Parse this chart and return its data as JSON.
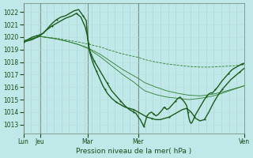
{
  "xlabel": "Pression niveau de la mer( hPa )",
  "bg_color": "#c0e8e8",
  "grid_color_v": "#a8d4d4",
  "grid_color_h": "#b8dcdc",
  "line_dark": "#1a5c1a",
  "line_thin": "#2e7d2e",
  "line_vlight": "#5aaa5a",
  "ylim": [
    1012.3,
    1022.7
  ],
  "yticks": [
    1013,
    1014,
    1015,
    1016,
    1017,
    1018,
    1019,
    1020,
    1021,
    1022
  ],
  "xtick_pos": [
    0.0,
    0.075,
    0.29,
    0.52,
    1.0
  ],
  "xtick_lab": [
    "Lun",
    "Jeu",
    "Mar",
    "Mer",
    "Ven"
  ],
  "series1": [
    [
      0.0,
      1019.6
    ],
    [
      0.01,
      1019.7
    ],
    [
      0.02,
      1019.8
    ],
    [
      0.03,
      1019.9
    ],
    [
      0.04,
      1020.0
    ],
    [
      0.05,
      1020.05
    ],
    [
      0.06,
      1020.1
    ],
    [
      0.07,
      1020.15
    ],
    [
      0.075,
      1020.2
    ],
    [
      0.09,
      1020.3
    ],
    [
      0.11,
      1020.7
    ],
    [
      0.13,
      1021.1
    ],
    [
      0.15,
      1021.4
    ],
    [
      0.17,
      1021.6
    ],
    [
      0.19,
      1021.7
    ],
    [
      0.21,
      1021.9
    ],
    [
      0.23,
      1022.1
    ],
    [
      0.25,
      1022.2
    ],
    [
      0.27,
      1021.7
    ],
    [
      0.285,
      1021.3
    ],
    [
      0.29,
      1020.0
    ],
    [
      0.295,
      1019.3
    ],
    [
      0.3,
      1018.9
    ],
    [
      0.31,
      1018.5
    ],
    [
      0.32,
      1018.1
    ],
    [
      0.33,
      1017.8
    ],
    [
      0.34,
      1017.5
    ],
    [
      0.35,
      1017.2
    ],
    [
      0.36,
      1016.9
    ],
    [
      0.37,
      1016.6
    ],
    [
      0.38,
      1016.3
    ],
    [
      0.39,
      1016.0
    ],
    [
      0.4,
      1015.7
    ],
    [
      0.41,
      1015.5
    ],
    [
      0.42,
      1015.3
    ],
    [
      0.43,
      1015.1
    ],
    [
      0.44,
      1014.9
    ],
    [
      0.45,
      1014.7
    ],
    [
      0.46,
      1014.5
    ],
    [
      0.47,
      1014.35
    ],
    [
      0.48,
      1014.2
    ],
    [
      0.49,
      1014.1
    ],
    [
      0.5,
      1014.0
    ],
    [
      0.51,
      1013.9
    ],
    [
      0.52,
      1013.6
    ],
    [
      0.53,
      1013.4
    ],
    [
      0.535,
      1013.2
    ],
    [
      0.54,
      1013.05
    ],
    [
      0.545,
      1012.85
    ],
    [
      0.55,
      1013.1
    ],
    [
      0.555,
      1013.4
    ],
    [
      0.56,
      1013.7
    ],
    [
      0.57,
      1013.9
    ],
    [
      0.58,
      1014.0
    ],
    [
      0.59,
      1013.85
    ],
    [
      0.6,
      1013.7
    ],
    [
      0.61,
      1013.8
    ],
    [
      0.62,
      1014.0
    ],
    [
      0.63,
      1014.2
    ],
    [
      0.635,
      1014.35
    ],
    [
      0.64,
      1014.4
    ],
    [
      0.645,
      1014.3
    ],
    [
      0.65,
      1014.2
    ],
    [
      0.66,
      1014.3
    ],
    [
      0.67,
      1014.5
    ],
    [
      0.68,
      1014.7
    ],
    [
      0.69,
      1014.9
    ],
    [
      0.7,
      1015.1
    ],
    [
      0.71,
      1015.2
    ],
    [
      0.72,
      1015.0
    ],
    [
      0.73,
      1014.8
    ],
    [
      0.74,
      1014.5
    ],
    [
      0.745,
      1014.0
    ],
    [
      0.75,
      1013.5
    ],
    [
      0.755,
      1013.2
    ],
    [
      0.76,
      1013.1
    ],
    [
      0.765,
      1013.2
    ],
    [
      0.77,
      1013.4
    ],
    [
      0.775,
      1013.6
    ],
    [
      0.78,
      1013.8
    ],
    [
      0.79,
      1014.1
    ],
    [
      0.8,
      1014.4
    ],
    [
      0.81,
      1014.7
    ],
    [
      0.82,
      1015.0
    ],
    [
      0.83,
      1015.25
    ],
    [
      0.84,
      1015.45
    ],
    [
      0.845,
      1015.5
    ],
    [
      0.85,
      1015.55
    ],
    [
      0.855,
      1015.5
    ],
    [
      0.86,
      1015.6
    ],
    [
      0.87,
      1015.8
    ],
    [
      0.88,
      1016.0
    ],
    [
      0.89,
      1016.25
    ],
    [
      0.9,
      1016.5
    ],
    [
      0.91,
      1016.7
    ],
    [
      0.92,
      1016.9
    ],
    [
      0.93,
      1017.1
    ],
    [
      0.94,
      1017.3
    ],
    [
      0.95,
      1017.45
    ],
    [
      0.96,
      1017.55
    ],
    [
      0.97,
      1017.65
    ],
    [
      0.98,
      1017.75
    ],
    [
      0.99,
      1017.85
    ],
    [
      1.0,
      1017.9
    ]
  ],
  "series2": [
    [
      0.0,
      1019.6
    ],
    [
      0.04,
      1019.8
    ],
    [
      0.075,
      1020.1
    ],
    [
      0.1,
      1020.5
    ],
    [
      0.13,
      1020.9
    ],
    [
      0.16,
      1021.2
    ],
    [
      0.19,
      1021.5
    ],
    [
      0.22,
      1021.7
    ],
    [
      0.24,
      1021.9
    ],
    [
      0.26,
      1021.6
    ],
    [
      0.28,
      1020.8
    ],
    [
      0.29,
      1020.1
    ],
    [
      0.295,
      1019.5
    ],
    [
      0.3,
      1018.8
    ],
    [
      0.31,
      1018.2
    ],
    [
      0.32,
      1017.7
    ],
    [
      0.33,
      1017.3
    ],
    [
      0.34,
      1016.9
    ],
    [
      0.35,
      1016.5
    ],
    [
      0.36,
      1016.1
    ],
    [
      0.37,
      1015.8
    ],
    [
      0.38,
      1015.5
    ],
    [
      0.39,
      1015.3
    ],
    [
      0.4,
      1015.1
    ],
    [
      0.42,
      1014.8
    ],
    [
      0.44,
      1014.6
    ],
    [
      0.46,
      1014.4
    ],
    [
      0.48,
      1014.3
    ],
    [
      0.5,
      1014.2
    ],
    [
      0.52,
      1014.0
    ],
    [
      0.54,
      1013.8
    ],
    [
      0.56,
      1013.6
    ],
    [
      0.58,
      1013.5
    ],
    [
      0.6,
      1013.4
    ],
    [
      0.62,
      1013.4
    ],
    [
      0.64,
      1013.5
    ],
    [
      0.66,
      1013.6
    ],
    [
      0.68,
      1013.8
    ],
    [
      0.7,
      1014.0
    ],
    [
      0.72,
      1014.2
    ],
    [
      0.74,
      1014.3
    ],
    [
      0.76,
      1014.0
    ],
    [
      0.78,
      1013.5
    ],
    [
      0.8,
      1013.3
    ],
    [
      0.82,
      1013.4
    ],
    [
      0.84,
      1014.0
    ],
    [
      0.86,
      1014.7
    ],
    [
      0.88,
      1015.3
    ],
    [
      0.9,
      1015.8
    ],
    [
      0.92,
      1016.2
    ],
    [
      0.94,
      1016.6
    ],
    [
      0.96,
      1016.9
    ],
    [
      0.98,
      1017.2
    ],
    [
      1.0,
      1017.5
    ]
  ],
  "series3_thin": [
    [
      0.0,
      1019.7
    ],
    [
      0.075,
      1020.05
    ],
    [
      0.15,
      1019.9
    ],
    [
      0.2,
      1019.75
    ],
    [
      0.25,
      1019.6
    ],
    [
      0.29,
      1019.45
    ],
    [
      0.35,
      1019.2
    ],
    [
      0.4,
      1018.9
    ],
    [
      0.45,
      1018.65
    ],
    [
      0.5,
      1018.45
    ],
    [
      0.52,
      1018.38
    ],
    [
      0.55,
      1018.2
    ],
    [
      0.6,
      1018.0
    ],
    [
      0.65,
      1017.85
    ],
    [
      0.7,
      1017.75
    ],
    [
      0.75,
      1017.65
    ],
    [
      0.8,
      1017.6
    ],
    [
      0.85,
      1017.6
    ],
    [
      0.9,
      1017.65
    ],
    [
      0.95,
      1017.7
    ],
    [
      1.0,
      1017.8
    ]
  ],
  "series4_thin": [
    [
      0.0,
      1019.7
    ],
    [
      0.075,
      1020.05
    ],
    [
      0.15,
      1019.85
    ],
    [
      0.2,
      1019.65
    ],
    [
      0.25,
      1019.4
    ],
    [
      0.29,
      1019.15
    ],
    [
      0.35,
      1018.6
    ],
    [
      0.4,
      1018.0
    ],
    [
      0.45,
      1017.4
    ],
    [
      0.5,
      1016.9
    ],
    [
      0.52,
      1016.7
    ],
    [
      0.55,
      1016.35
    ],
    [
      0.6,
      1016.0
    ],
    [
      0.65,
      1015.7
    ],
    [
      0.7,
      1015.5
    ],
    [
      0.75,
      1015.35
    ],
    [
      0.8,
      1015.3
    ],
    [
      0.85,
      1015.4
    ],
    [
      0.9,
      1015.6
    ],
    [
      0.95,
      1015.85
    ],
    [
      1.0,
      1016.1
    ]
  ],
  "series5_thin": [
    [
      0.0,
      1019.7
    ],
    [
      0.075,
      1020.05
    ],
    [
      0.15,
      1019.85
    ],
    [
      0.2,
      1019.65
    ],
    [
      0.25,
      1019.4
    ],
    [
      0.29,
      1019.1
    ],
    [
      0.35,
      1018.4
    ],
    [
      0.4,
      1017.7
    ],
    [
      0.45,
      1017.0
    ],
    [
      0.5,
      1016.4
    ],
    [
      0.52,
      1016.1
    ],
    [
      0.55,
      1015.7
    ],
    [
      0.6,
      1015.4
    ],
    [
      0.65,
      1015.2
    ],
    [
      0.7,
      1015.1
    ],
    [
      0.75,
      1015.0
    ],
    [
      0.8,
      1015.1
    ],
    [
      0.85,
      1015.25
    ],
    [
      0.9,
      1015.5
    ],
    [
      0.95,
      1015.8
    ],
    [
      1.0,
      1016.1
    ]
  ]
}
